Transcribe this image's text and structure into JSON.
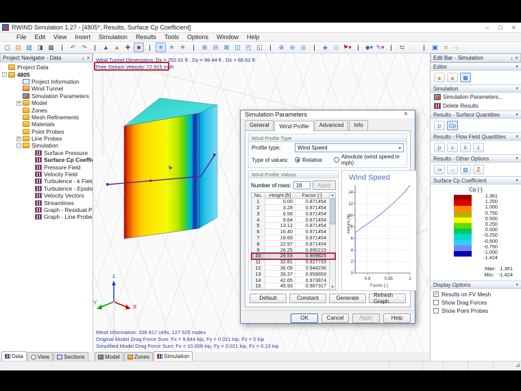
{
  "titlebar": {
    "title": "RWIND Simulation 1.27 - [4805*, Results, Surface Cp Coefficient]",
    "minimize": "–",
    "maximize": "□",
    "close": "×"
  },
  "menubar": {
    "items": [
      "File",
      "Edit",
      "View",
      "Insert",
      "Simulation",
      "Results",
      "Tools",
      "Options",
      "Window",
      "Help"
    ]
  },
  "toolbar": {
    "icons": [
      {
        "name": "new-file-icon",
        "glyph": "▢",
        "cls": "c-dark"
      },
      {
        "name": "open-folder-icon",
        "glyph": "▤",
        "cls": "c-yellow"
      },
      {
        "name": "save-icon",
        "glyph": "▥",
        "cls": "c-blue"
      },
      {
        "name": "print-preview-icon",
        "glyph": "◨",
        "cls": "c-dark"
      },
      {
        "name": "print-icon",
        "glyph": "▦",
        "cls": "c-dark"
      },
      {
        "name": "sep",
        "glyph": "|"
      },
      {
        "name": "undo-icon",
        "glyph": "↶",
        "cls": "c-blue"
      },
      {
        "name": "redo-icon",
        "glyph": "↷",
        "cls": "c-blue"
      },
      {
        "name": "sep",
        "glyph": "|"
      },
      {
        "name": "model-cone-icon",
        "glyph": "▲",
        "cls": "c-dark"
      },
      {
        "name": "zones-cone-icon",
        "glyph": "▲",
        "cls": "c-orange"
      },
      {
        "name": "mesh-icon",
        "glyph": "✚",
        "cls": "c-dark"
      },
      {
        "name": "stop-icon",
        "glyph": "■",
        "cls": "c-red",
        "active": "active"
      },
      {
        "name": "sep",
        "glyph": "|"
      },
      {
        "name": "wind-sim-icon",
        "glyph": "✳",
        "cls": "c-blue",
        "active": "active"
      },
      {
        "name": "wind-sim2-icon",
        "glyph": "✳",
        "cls": "c-blue"
      },
      {
        "name": "wind-sim3-icon",
        "glyph": "✳",
        "cls": "c-red"
      },
      {
        "name": "sep",
        "glyph": "|"
      },
      {
        "name": "view-iso-icon",
        "glyph": "⊞",
        "cls": "c-blue"
      },
      {
        "name": "view-front-icon",
        "glyph": "⊟",
        "cls": "c-blue"
      },
      {
        "name": "view-side-icon",
        "glyph": "⊠",
        "cls": "c-blue"
      },
      {
        "name": "view-top-icon",
        "glyph": "◫",
        "cls": "c-blue"
      },
      {
        "name": "view-back-icon",
        "glyph": "◰",
        "cls": "c-blue"
      },
      {
        "name": "view-full-icon",
        "glyph": "◱",
        "cls": "c-blue"
      },
      {
        "name": "sep",
        "glyph": "|"
      },
      {
        "name": "zoom-in-icon",
        "glyph": "⊕",
        "cls": "c-blue"
      },
      {
        "name": "zoom-out-icon",
        "glyph": "⊖",
        "cls": "c-blue"
      },
      {
        "name": "zoom-extents-icon",
        "glyph": "◎",
        "cls": "c-blue"
      },
      {
        "name": "sep",
        "glyph": "|"
      },
      {
        "name": "render-mode-icon",
        "glyph": "◈",
        "cls": "c-blue"
      },
      {
        "name": "perspective-icon",
        "glyph": "◇",
        "cls": "c-blue"
      },
      {
        "name": "flag-icon",
        "glyph": "⚑▾",
        "cls": "c-red"
      },
      {
        "name": "sep",
        "glyph": "|"
      },
      {
        "name": "display-3d-icon",
        "glyph": "◆▾",
        "cls": "c-blue"
      },
      {
        "name": "annotate-icon",
        "glyph": "✎▾",
        "cls": "c-purple"
      },
      {
        "name": "sep",
        "glyph": "|"
      },
      {
        "name": "clipping-icon",
        "glyph": "⇆",
        "cls": "c-gray"
      },
      {
        "name": "section-icon",
        "glyph": "◌",
        "cls": "c-gray"
      },
      {
        "name": "sep",
        "glyph": "|"
      },
      {
        "name": "result-box-icon",
        "glyph": "▣",
        "cls": "c-blue"
      },
      {
        "name": "measure-icon",
        "glyph": "≡",
        "cls": "c-gray"
      },
      {
        "name": "settings-icon",
        "glyph": "☼",
        "cls": "c-orange"
      }
    ]
  },
  "navigator": {
    "title": "Project Navigator - Data",
    "pin": "↓",
    "close": "×",
    "tree": [
      {
        "label": "Project Data",
        "icon": "icon-folder",
        "cls": "lvl0"
      },
      {
        "label": "4805",
        "icon": "icon-folder",
        "exp": "-",
        "cls": "lvl1 bold"
      },
      {
        "label": "Project Information",
        "icon": "icon-info",
        "cls": "lvl2"
      },
      {
        "label": "Wind Tunnel",
        "icon": "icon-tunnel",
        "cls": "lvl2"
      },
      {
        "label": "Simulation Parameters",
        "icon": "icon-simparams",
        "cls": "lvl2"
      },
      {
        "label": "Model",
        "icon": "icon-folder",
        "exp": "+",
        "cls": "lvl2"
      },
      {
        "label": "Zones",
        "icon": "icon-folder",
        "cls": "lvl2"
      },
      {
        "label": "Mesh Refinements",
        "icon": "icon-folder",
        "cls": "lvl2"
      },
      {
        "label": "Materials",
        "icon": "icon-folder",
        "cls": "lvl2"
      },
      {
        "label": "Point Probes",
        "icon": "icon-folder",
        "cls": "lvl2"
      },
      {
        "label": "Line Probes",
        "icon": "icon-folder",
        "exp": "+",
        "cls": "lvl2"
      },
      {
        "label": "Simulation",
        "icon": "icon-folder",
        "exp": "-",
        "cls": "lvl2"
      },
      {
        "label": "Surface Pressure",
        "icon": "icon-result",
        "cls": "lvl3"
      },
      {
        "label": "Surface Cp Coefficient",
        "icon": "icon-result",
        "cls": "lvl3 bold"
      },
      {
        "label": "Pressure Field",
        "icon": "icon-result",
        "cls": "lvl3"
      },
      {
        "label": "Velocity Field",
        "icon": "icon-result",
        "cls": "lvl3"
      },
      {
        "label": "Turbulence - k Field",
        "icon": "icon-result",
        "cls": "lvl3"
      },
      {
        "label": "Turbulence - Epsilon Field",
        "icon": "icon-result",
        "cls": "lvl3"
      },
      {
        "label": "Velocity Vectors",
        "icon": "icon-result",
        "cls": "lvl3"
      },
      {
        "label": "Streamlines",
        "icon": "icon-result",
        "cls": "lvl3"
      },
      {
        "label": "Graph - Residual Pressure",
        "icon": "icon-result",
        "cls": "lvl3"
      },
      {
        "label": "Graph - Line Probes",
        "icon": "icon-result",
        "cls": "lvl3"
      }
    ],
    "tabs": [
      {
        "label": "Data",
        "icon": "icon-result",
        "cls": "active"
      },
      {
        "label": "View",
        "icon": "icon-eye"
      },
      {
        "label": "Sections",
        "icon": "icon-sections"
      }
    ]
  },
  "viewport": {
    "info1": "Wind Tunnel Dimensions: Dx = 252.01 ft , Dy = 98.44 ft , Dz = 65.62 ft",
    "info2": "Free Stream Velocity: 72.915 mph",
    "mesh1": "Mesh Information: 108 817 cells, 127 525 nodes",
    "mesh2": "Original Model Drag Force Sum: Fx = 9.844 kip, Fy = 0.021 kip, Fz = 0 kip",
    "mesh3": "Simplified Model Drag Force Sum: Fx = 10.009 kip, Fy = 0.021 kip, Fz = 0.13 kip",
    "axis_x": "X",
    "axis_y": "Y",
    "axis_z": "z",
    "tabs": [
      {
        "label": "Model",
        "icon": "icon-simparams"
      },
      {
        "label": "Zones",
        "icon": "icon-tunnel"
      },
      {
        "label": "Simulation",
        "icon": "icon-result",
        "cls": "active"
      }
    ]
  },
  "dialog": {
    "title": "Simulation Parameters",
    "close": "×",
    "tabs": [
      {
        "label": "General"
      },
      {
        "label": "Wind Profile",
        "cls": "active"
      },
      {
        "label": "Advanced"
      },
      {
        "label": "Info"
      }
    ],
    "type_group": {
      "title": "Wind Profile Type",
      "profile_label": "Profile type:",
      "profile_value": "Wind Speed",
      "dropdown_arrow": "▾",
      "values_label": "Type of values:",
      "relative": "Relative",
      "absolute": "Absolute (wind speed in mph)"
    },
    "values_group": {
      "title": "Wind Profile Values",
      "rows_label": "Number of rows:",
      "rows_value": "16",
      "apply": "Apply",
      "col_no": "No.",
      "col_height": "Height [ft]",
      "col_factor": "Factor [-]",
      "scroll_up": "▴",
      "scroll_down": "▾",
      "rows": [
        {
          "no": "1",
          "h": "0.00",
          "f": "0.871454"
        },
        {
          "no": "2",
          "h": "3.28",
          "f": "0.871454"
        },
        {
          "no": "3",
          "h": "6.56",
          "f": "0.871454"
        },
        {
          "no": "4",
          "h": "9.84",
          "f": "0.871454"
        },
        {
          "no": "5",
          "h": "13.12",
          "f": "0.871454"
        },
        {
          "no": "6",
          "h": "16.40",
          "f": "0.871454"
        },
        {
          "no": "7",
          "h": "19.69",
          "f": "0.871454"
        },
        {
          "no": "8",
          "h": "22.97",
          "f": "0.871454"
        },
        {
          "no": "9",
          "h": "26.25",
          "f": "0.890215"
        },
        {
          "no": "10",
          "h": "29.53",
          "f": "0.909825",
          "cls": "hl"
        },
        {
          "no": "11",
          "h": "32.81",
          "f": "0.927733"
        },
        {
          "no": "12",
          "h": "36.09",
          "f": "0.944236"
        },
        {
          "no": "13",
          "h": "39.37",
          "f": "0.959659"
        },
        {
          "no": "14",
          "h": "42.65",
          "f": "0.973874"
        },
        {
          "no": "15",
          "h": "45.93",
          "f": "0.987317"
        }
      ]
    },
    "buttons": [
      {
        "label": "Default"
      },
      {
        "label": "Constant"
      },
      {
        "label": "Generate"
      },
      {
        "label": "Refresh Graph"
      }
    ],
    "footer": [
      {
        "label": "OK",
        "cls": "primary"
      },
      {
        "label": "Cancel"
      },
      {
        "label": "Apply",
        "cls": "disabled"
      },
      {
        "label": "Help"
      }
    ]
  },
  "chart_data": {
    "type": "line",
    "title": "Wind Speed",
    "xlabel": "Factor [-]",
    "ylabel": "Height [ft]",
    "xlim": [
      0.871,
      1.0
    ],
    "ylim": [
      0,
      15.2
    ],
    "xticks": [
      0.9,
      0.95,
      1
    ],
    "yticks": [
      0,
      2,
      4,
      6,
      8,
      10,
      12,
      14
    ],
    "grid": true,
    "series": [
      {
        "name": "wind-profile",
        "points": [
          [
            0.871454,
            0
          ],
          [
            0.871454,
            7
          ],
          [
            0.890215,
            8
          ],
          [
            0.909825,
            9
          ],
          [
            0.927733,
            10
          ],
          [
            0.944236,
            11
          ],
          [
            0.959659,
            12
          ],
          [
            0.973874,
            13
          ],
          [
            0.987317,
            14
          ],
          [
            1.0,
            15.2
          ]
        ]
      }
    ]
  },
  "editbar": {
    "title": "Edit Bar - Simulation",
    "pin": "↓",
    "close": "×",
    "collapse": "▾",
    "editor": {
      "title": "Editor",
      "icons": [
        {
          "name": "edit-model-icon",
          "glyph": "▲",
          "cls": "c-orange"
        },
        {
          "name": "edit-zones-icon",
          "glyph": "▲",
          "cls": "c-orange"
        },
        {
          "name": "edit-simulation-icon",
          "glyph": "▦",
          "cls": "c-blue",
          "sel": "sel"
        }
      ]
    },
    "simulation": {
      "title": "Simulation",
      "items": [
        {
          "label": "Simulation Parameters...",
          "icon": "icon-simparams",
          "name": "simulation-parameters-item"
        },
        {
          "label": "Delete Results",
          "icon": "icon-result",
          "name": "delete-results-item"
        }
      ]
    },
    "surface": {
      "title": "Results - Surface Quantities",
      "icons": [
        {
          "name": "surface-pressure-icon",
          "glyph": "p",
          "cls": "c-blue"
        },
        {
          "name": "surface-cp-icon",
          "glyph": "Cp",
          "cls": "c-blue",
          "sel": "sel"
        }
      ]
    },
    "flow": {
      "title": "Results - Flow Field Quantities",
      "icons": [
        {
          "name": "pressure-field-icon",
          "glyph": "p",
          "cls": "c-blue"
        },
        {
          "name": "velocity-field-icon",
          "glyph": "v",
          "cls": "c-blue"
        },
        {
          "name": "turbulence-k-icon",
          "glyph": "k",
          "cls": "c-blue"
        },
        {
          "name": "turbulence-epsilon-icon",
          "glyph": "ε",
          "cls": "c-blue"
        }
      ]
    },
    "other": {
      "title": "Results - Other Options",
      "icons": [
        {
          "name": "velocity-vectors-icon",
          "glyph": "⇒",
          "cls": "c-blue"
        },
        {
          "name": "streamlines-icon",
          "glyph": "☼",
          "cls": "c-orange"
        },
        {
          "name": "image-icon",
          "glyph": "▧",
          "cls": "c-blue"
        },
        {
          "name": "clear-z-icon",
          "glyph": "Z",
          "cls": "c-red"
        }
      ]
    },
    "cp": {
      "title": "Surface Cp Coefficient",
      "unit": "Cp [-]",
      "colors": [
        "#a00000",
        "#dd0000",
        "#ff8800",
        "#b8b000",
        "#ffff00",
        "#66d900",
        "#00cc55",
        "#00ddcc",
        "#33ccff",
        "#7788ee",
        "#0000bb"
      ],
      "boundaries": [
        "1.361",
        "1.250",
        "1.000",
        "0.750",
        "0.500",
        "0.250",
        "0.000",
        "-0.250",
        "-0.500",
        "-0.750",
        "-1.000",
        "-1.424"
      ],
      "max_label": "Max:",
      "max": "1.361",
      "min_label": "Min:",
      "min": "-1.424"
    },
    "display": {
      "title": "Display Options",
      "options": [
        {
          "label": "Results on FV Mesh",
          "check": "✓",
          "cls": "checked"
        },
        {
          "label": "Show Drag Forces"
        },
        {
          "label": "Show Point Probes"
        }
      ]
    }
  }
}
